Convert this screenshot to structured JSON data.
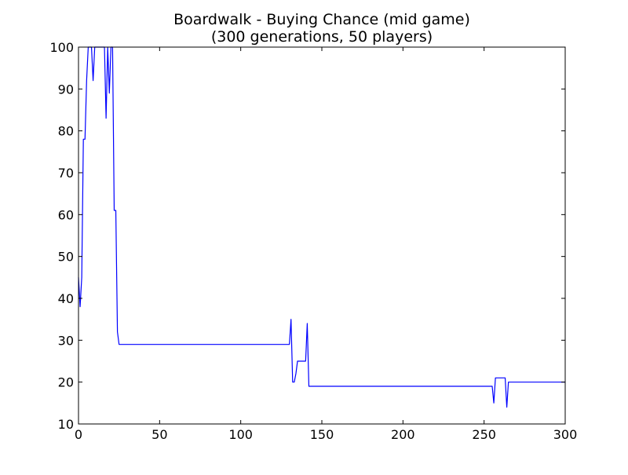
{
  "chart_data": {
    "type": "line",
    "title": "Boardwalk - Buying Chance (mid game)",
    "subtitle": "(300 generations, 50 players)",
    "xlabel": "",
    "ylabel": "",
    "xlim": [
      0,
      300
    ],
    "ylim": [
      10,
      100
    ],
    "xticks": [
      0,
      50,
      100,
      150,
      200,
      250,
      300
    ],
    "yticks": [
      10,
      20,
      30,
      40,
      50,
      60,
      70,
      80,
      90,
      100
    ],
    "grid": false,
    "legend": "none",
    "line_color": "#0000ff",
    "series": [
      {
        "x": [
          0,
          1,
          2,
          3,
          4,
          5,
          6,
          7,
          8,
          9,
          10,
          11,
          12,
          13,
          14,
          15,
          16,
          17,
          18,
          19,
          20,
          21,
          22,
          23,
          24,
          25,
          26,
          30,
          40,
          60,
          80,
          100,
          120,
          130,
          131,
          132,
          133,
          134,
          135,
          136,
          137,
          138,
          139,
          140,
          141,
          142,
          143,
          150,
          200,
          250,
          254,
          255,
          256,
          257,
          258,
          259,
          260,
          261,
          262,
          263,
          264,
          265,
          266,
          270,
          280,
          290,
          299,
          300
        ],
        "y": [
          45,
          38,
          45,
          78,
          78,
          92,
          100,
          100,
          100,
          92,
          100,
          100,
          100,
          100,
          100,
          100,
          100,
          83,
          100,
          89,
          100,
          100,
          61,
          61,
          32,
          29,
          29,
          29,
          29,
          29,
          29,
          29,
          29,
          29,
          35,
          20,
          20,
          22,
          25,
          25,
          25,
          25,
          25,
          25,
          34,
          19,
          19,
          19,
          19,
          19,
          19,
          19,
          15,
          21,
          21,
          21,
          21,
          21,
          21,
          21,
          14,
          20,
          20,
          20,
          20,
          20,
          20,
          20
        ]
      }
    ]
  }
}
